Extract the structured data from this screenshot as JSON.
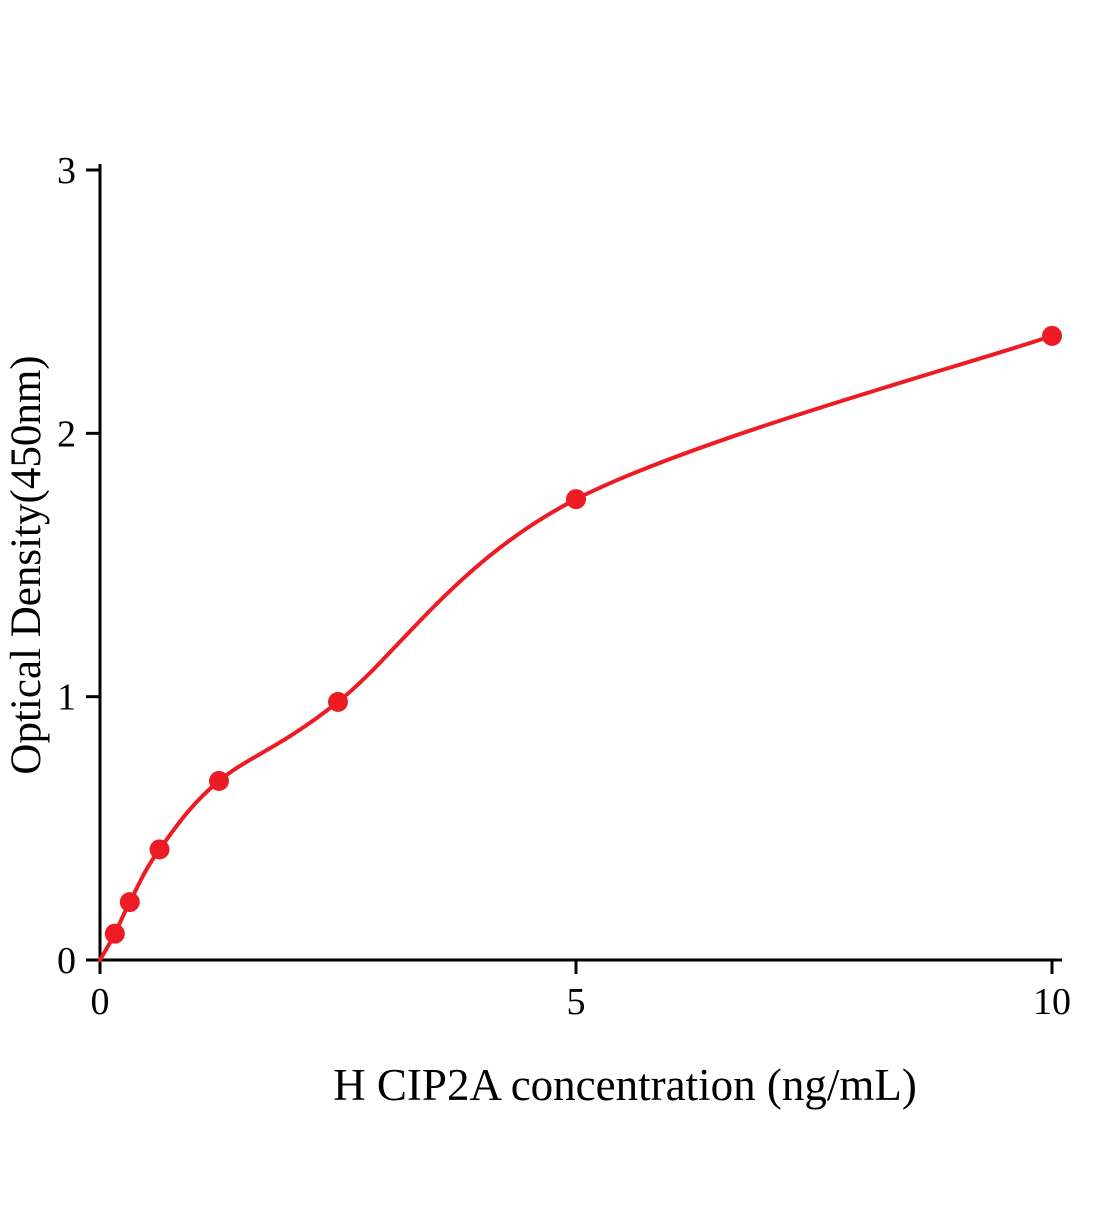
{
  "chart_data": {
    "type": "scatter",
    "x": [
      0.156,
      0.313,
      0.625,
      1.25,
      2.5,
      5,
      10
    ],
    "y": [
      0.1,
      0.22,
      0.42,
      0.68,
      0.98,
      1.75,
      2.37
    ],
    "curve_start": [
      0,
      0
    ],
    "fit_through_origin": true,
    "title": "",
    "xlabel": "H CIP2A concentration (ng/mL)",
    "ylabel": "Optical Density(450nm)",
    "xlim": [
      0,
      10
    ],
    "ylim": [
      0,
      3
    ],
    "xticks": [
      0,
      5,
      10
    ],
    "yticks": [
      0,
      1,
      2,
      3
    ],
    "grid": false,
    "legend": false,
    "point_color": "#ed1c24",
    "line_color": "#ed1c24",
    "axis_color": "#000000"
  }
}
